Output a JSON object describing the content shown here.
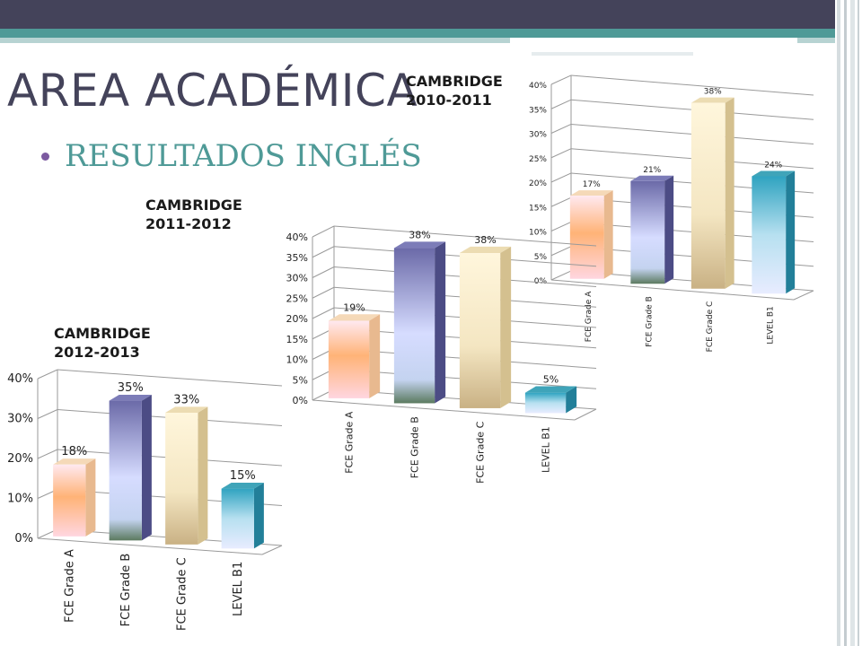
{
  "page": {
    "title": "AREA ACADÉMICA",
    "subtitle": "RESULTADOS INGLÉS"
  },
  "colors": {
    "header_dark": "#44435a",
    "header_teal": "#4f9a97",
    "subtitle": "#4f9a97",
    "bullet": "#7c5aa0"
  },
  "chart_data": [
    {
      "type": "bar",
      "label": "CAMBRIDGE 2010-2011",
      "categories": [
        "FCE Grade A",
        "FCE Grade B",
        "FCE Grade C",
        "LEVEL B1"
      ],
      "values": [
        17,
        21,
        38,
        24
      ],
      "value_labels": [
        "17%",
        "21%",
        "38%",
        "24%"
      ],
      "ylim": [
        0,
        40
      ],
      "yticks": [
        "0%",
        "5%",
        "10%",
        "15%",
        "20%",
        "25%",
        "30%",
        "35%",
        "40%"
      ],
      "grid": true
    },
    {
      "type": "bar",
      "label": "CAMBRIDGE 2011-2012",
      "categories": [
        "FCE Grade A",
        "FCE Grade B",
        "FCE Grade C",
        "LEVEL B1"
      ],
      "values": [
        19,
        38,
        38,
        5
      ],
      "value_labels": [
        "19%",
        "38%",
        "38%",
        "5%"
      ],
      "ylim": [
        0,
        40
      ],
      "yticks": [
        "0%",
        "5%",
        "10%",
        "15%",
        "20%",
        "25%",
        "30%",
        "35%",
        "40%"
      ],
      "grid": true
    },
    {
      "type": "bar",
      "label": "CAMBRIDGE 2012-2013",
      "categories": [
        "FCE Grade A",
        "FCE Grade B",
        "FCE Grade C",
        "LEVEL B1"
      ],
      "values": [
        18,
        35,
        33,
        15
      ],
      "value_labels": [
        "18%",
        "35%",
        "33%",
        "15%"
      ],
      "ylim": [
        0,
        40
      ],
      "yticks": [
        "0%",
        "10%",
        "20%",
        "30%",
        "40%"
      ],
      "grid": true
    }
  ]
}
